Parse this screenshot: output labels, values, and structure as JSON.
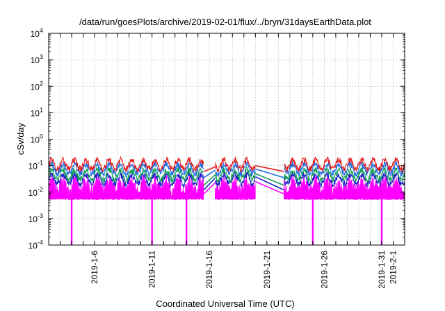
{
  "chart_data": {
    "type": "line",
    "title": "/data/run/goesPlots/archive/2019-02-01/flux/../bryn/31daysEarthData.plot",
    "xlabel": "Coordinated Universal Time (UTC)",
    "ylabel": "cSv/day",
    "xlim": [
      "2019-01-02",
      "2019-02-02"
    ],
    "ylim": [
      0.0001,
      10000
    ],
    "yscale": "log",
    "grid": true,
    "legend": "none",
    "x_ticks": [
      "2019-1-6",
      "2019-1-11",
      "2019-1-16",
      "2019-1-21",
      "2019-1-26",
      "2019-1-31",
      "2019-2-1"
    ],
    "y_ticks": [
      {
        "value": 0.0001,
        "base": "10",
        "exp": "-4"
      },
      {
        "value": 0.001,
        "base": "10",
        "exp": "-3"
      },
      {
        "value": 0.01,
        "base": "10",
        "exp": "-2"
      },
      {
        "value": 0.1,
        "base": "10",
        "exp": "-1"
      },
      {
        "value": 1,
        "base": "10",
        "exp": "0"
      },
      {
        "value": 10,
        "base": "10",
        "exp": "1"
      },
      {
        "value": 100,
        "base": "10",
        "exp": "2"
      },
      {
        "value": 1000,
        "base": "10",
        "exp": "3"
      },
      {
        "value": 10000,
        "base": "10",
        "exp": "4"
      }
    ],
    "data_segments": [
      {
        "start": "2019-01-02",
        "end": "2019-01-15T12:00"
      },
      {
        "start": "2019-01-16T12:00",
        "end": "2019-01-20"
      },
      {
        "start": "2019-01-22T12:00",
        "end": "2019-02-02"
      }
    ],
    "series": [
      {
        "color": "#e31a1c",
        "level": 0.11,
        "gap_start": 0.06,
        "gap_end": 0.1
      },
      {
        "color": "#1f6fe5",
        "level": 0.075,
        "gap_start": 0.035,
        "gap_end": 0.075
      },
      {
        "color": "#12a05a",
        "level": 0.045,
        "gap_start": 0.018,
        "gap_end": 0.05
      },
      {
        "color": "#1e1ec8",
        "level": 0.03,
        "gap_start": 0.012,
        "gap_end": 0.038
      },
      {
        "color": "#ff00ff",
        "level": 0.015,
        "gap_start": 0.0085,
        "gap_end": 0.025
      }
    ],
    "magenta_dropouts": [
      "2019-01-04",
      "2019-01-11",
      "2019-01-14",
      "2019-01-25",
      "2019-01-31"
    ],
    "dropout_min": 0.0001
  }
}
